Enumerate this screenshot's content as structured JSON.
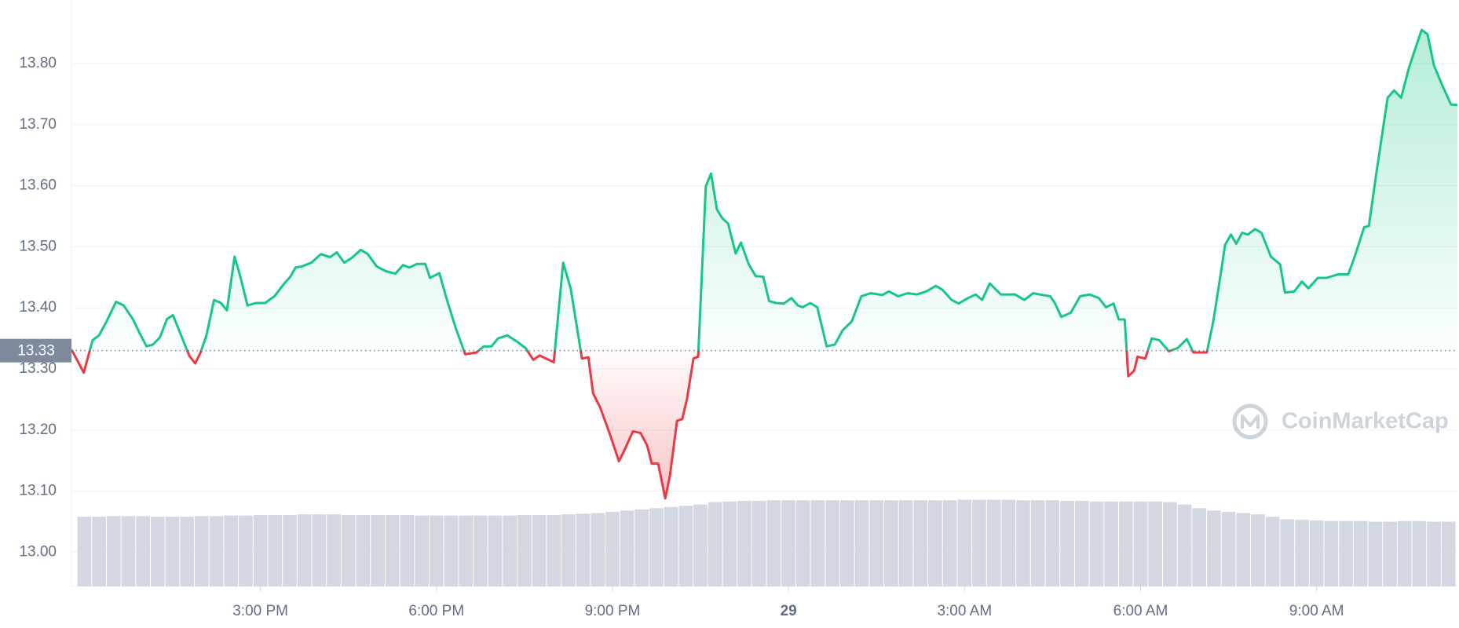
{
  "chart_data": {
    "type": "line",
    "watermark": "CoinMarketCap",
    "color_up": "#16c784",
    "color_down": "#ea3943",
    "volume_color": "#d3d7e1",
    "baseline": {
      "value": 13.33,
      "label": "13.33"
    },
    "grid": true,
    "xlim": [
      11.78,
      35.4
    ],
    "ylim": [
      12.944,
      13.904
    ],
    "yticks": [
      {
        "value": 13.0,
        "label": "13.00"
      },
      {
        "value": 13.1,
        "label": "13.10"
      },
      {
        "value": 13.2,
        "label": "13.20"
      },
      {
        "value": 13.3,
        "label": "13.30"
      },
      {
        "value": 13.4,
        "label": "13.40"
      },
      {
        "value": 13.5,
        "label": "13.50"
      },
      {
        "value": 13.6,
        "label": "13.60"
      },
      {
        "value": 13.7,
        "label": "13.70"
      },
      {
        "value": 13.8,
        "label": "13.80"
      }
    ],
    "xticks": [
      {
        "value": 15,
        "label": "3:00 PM"
      },
      {
        "value": 18,
        "label": "6:00 PM"
      },
      {
        "value": 21,
        "label": "9:00 PM"
      },
      {
        "value": 24,
        "label": "29",
        "bold": true
      },
      {
        "value": 27,
        "label": "3:00 AM"
      },
      {
        "value": 30,
        "label": "6:00 AM"
      },
      {
        "value": 33,
        "label": "9:00 AM"
      }
    ],
    "x": [
      11.78,
      11.99,
      12.14,
      12.25,
      12.38,
      12.54,
      12.67,
      12.83,
      12.94,
      13.06,
      13.17,
      13.29,
      13.41,
      13.51,
      13.67,
      13.79,
      13.89,
      13.98,
      14.08,
      14.21,
      14.33,
      14.43,
      14.56,
      14.65,
      14.78,
      14.92,
      15.08,
      15.24,
      15.4,
      15.51,
      15.6,
      15.71,
      15.87,
      16.03,
      16.19,
      16.3,
      16.43,
      16.56,
      16.71,
      16.83,
      16.98,
      17.14,
      17.3,
      17.43,
      17.54,
      17.67,
      17.81,
      17.89,
      18.05,
      18.17,
      18.33,
      18.49,
      18.68,
      18.81,
      18.94,
      19.05,
      19.21,
      19.37,
      19.52,
      19.65,
      19.76,
      20.0,
      20.16,
      20.29,
      20.48,
      20.59,
      20.67,
      20.79,
      20.95,
      21.11,
      21.19,
      21.35,
      21.48,
      21.59,
      21.67,
      21.78,
      21.9,
      21.98,
      22.1,
      22.19,
      22.27,
      22.38,
      22.46,
      22.59,
      22.68,
      22.78,
      22.87,
      22.97,
      23.1,
      23.19,
      23.32,
      23.44,
      23.57,
      23.67,
      23.79,
      23.92,
      24.05,
      24.16,
      24.24,
      24.37,
      24.49,
      24.65,
      24.79,
      24.92,
      25.08,
      25.24,
      25.4,
      25.6,
      25.71,
      25.87,
      26.03,
      26.19,
      26.35,
      26.51,
      26.62,
      26.78,
      26.9,
      27.06,
      27.19,
      27.3,
      27.43,
      27.62,
      27.86,
      28.02,
      28.17,
      28.33,
      28.46,
      28.54,
      28.65,
      28.81,
      28.97,
      29.13,
      29.29,
      29.41,
      29.54,
      29.63,
      29.73,
      29.79,
      29.89,
      29.95,
      30.08,
      30.19,
      30.32,
      30.48,
      30.63,
      30.79,
      30.9,
      31.13,
      31.24,
      31.35,
      31.44,
      31.54,
      31.63,
      31.73,
      31.83,
      31.95,
      32.06,
      32.22,
      32.38,
      32.46,
      32.62,
      32.75,
      32.86,
      33.02,
      33.17,
      33.37,
      33.54,
      33.65,
      33.81,
      33.89,
      34.02,
      34.21,
      34.32,
      34.44,
      34.57,
      34.68,
      34.79,
      34.89,
      35.0,
      35.13,
      35.29,
      35.4
    ],
    "values": [
      13.332,
      13.294,
      13.347,
      13.355,
      13.378,
      13.41,
      13.404,
      13.381,
      13.359,
      13.337,
      13.34,
      13.352,
      13.382,
      13.388,
      13.35,
      13.321,
      13.309,
      13.327,
      13.355,
      13.413,
      13.408,
      13.396,
      13.484,
      13.454,
      13.404,
      13.408,
      13.408,
      13.419,
      13.439,
      13.451,
      13.466,
      13.468,
      13.474,
      13.488,
      13.483,
      13.491,
      13.474,
      13.482,
      13.495,
      13.488,
      13.468,
      13.46,
      13.456,
      13.47,
      13.466,
      13.472,
      13.472,
      13.449,
      13.457,
      13.416,
      13.367,
      13.324,
      13.327,
      13.337,
      13.337,
      13.35,
      13.355,
      13.345,
      13.334,
      13.315,
      13.322,
      13.311,
      13.474,
      13.431,
      13.317,
      13.319,
      13.26,
      13.237,
      13.195,
      13.149,
      13.164,
      13.198,
      13.195,
      13.175,
      13.145,
      13.145,
      13.088,
      13.126,
      13.215,
      13.218,
      13.251,
      13.317,
      13.32,
      13.599,
      13.62,
      13.561,
      13.547,
      13.538,
      13.489,
      13.507,
      13.472,
      13.452,
      13.451,
      13.411,
      13.408,
      13.407,
      13.416,
      13.404,
      13.401,
      13.408,
      13.401,
      13.337,
      13.34,
      13.363,
      13.378,
      13.419,
      13.424,
      13.421,
      13.427,
      13.419,
      13.424,
      13.422,
      13.427,
      13.436,
      13.43,
      13.413,
      13.407,
      13.416,
      13.422,
      13.413,
      13.44,
      13.422,
      13.422,
      13.413,
      13.424,
      13.421,
      13.419,
      13.408,
      13.385,
      13.392,
      13.419,
      13.422,
      13.416,
      13.401,
      13.407,
      13.381,
      13.381,
      13.288,
      13.297,
      13.32,
      13.317,
      13.35,
      13.347,
      13.329,
      13.334,
      13.349,
      13.327,
      13.327,
      13.378,
      13.446,
      13.503,
      13.52,
      13.505,
      13.523,
      13.52,
      13.529,
      13.523,
      13.484,
      13.471,
      13.425,
      13.427,
      13.443,
      13.432,
      13.449,
      13.449,
      13.455,
      13.455,
      13.484,
      13.532,
      13.534,
      13.622,
      13.744,
      13.756,
      13.744,
      13.792,
      13.824,
      13.855,
      13.848,
      13.797,
      13.767,
      13.733,
      13.732
    ],
    "volume": {
      "x": [
        12,
        12.25,
        12.5,
        12.75,
        13,
        13.25,
        13.5,
        13.75,
        14,
        14.25,
        14.5,
        14.75,
        15,
        15.25,
        15.5,
        15.75,
        16,
        16.25,
        16.5,
        16.75,
        17,
        17.25,
        17.5,
        17.75,
        18,
        18.25,
        18.5,
        18.75,
        19,
        19.25,
        19.5,
        19.75,
        20,
        20.25,
        20.5,
        20.75,
        21,
        21.25,
        21.5,
        21.75,
        22,
        22.25,
        22.5,
        22.75,
        23,
        23.25,
        23.5,
        23.75,
        24,
        24.25,
        24.5,
        24.75,
        25,
        25.25,
        25.5,
        25.75,
        26,
        26.25,
        26.5,
        26.75,
        27,
        27.25,
        27.5,
        27.75,
        28,
        28.25,
        28.5,
        28.75,
        29,
        29.25,
        29.5,
        29.75,
        30,
        30.25,
        30.5,
        30.75,
        31,
        31.25,
        31.5,
        31.75,
        32,
        32.25,
        32.5,
        32.75,
        33,
        33.25,
        33.5,
        33.75,
        34,
        34.25,
        34.5,
        34.75,
        35,
        35.25
      ],
      "values": [
        13.058,
        13.058,
        13.059,
        13.059,
        13.059,
        13.058,
        13.058,
        13.058,
        13.059,
        13.059,
        13.06,
        13.06,
        13.061,
        13.061,
        13.061,
        13.062,
        13.062,
        13.062,
        13.061,
        13.061,
        13.061,
        13.061,
        13.061,
        13.06,
        13.06,
        13.06,
        13.06,
        13.06,
        13.06,
        13.06,
        13.061,
        13.061,
        13.061,
        13.062,
        13.063,
        13.064,
        13.066,
        13.068,
        13.07,
        13.072,
        13.074,
        13.076,
        13.078,
        13.082,
        13.083,
        13.084,
        13.084,
        13.085,
        13.085,
        13.085,
        13.085,
        13.085,
        13.085,
        13.085,
        13.085,
        13.085,
        13.085,
        13.085,
        13.085,
        13.085,
        13.086,
        13.086,
        13.086,
        13.086,
        13.085,
        13.085,
        13.085,
        13.084,
        13.084,
        13.083,
        13.083,
        13.083,
        13.083,
        13.083,
        13.082,
        13.078,
        13.072,
        13.068,
        13.066,
        13.064,
        13.062,
        13.058,
        13.054,
        13.053,
        13.052,
        13.051,
        13.051,
        13.051,
        13.05,
        13.05,
        13.051,
        13.051,
        13.05,
        13.05
      ]
    }
  }
}
